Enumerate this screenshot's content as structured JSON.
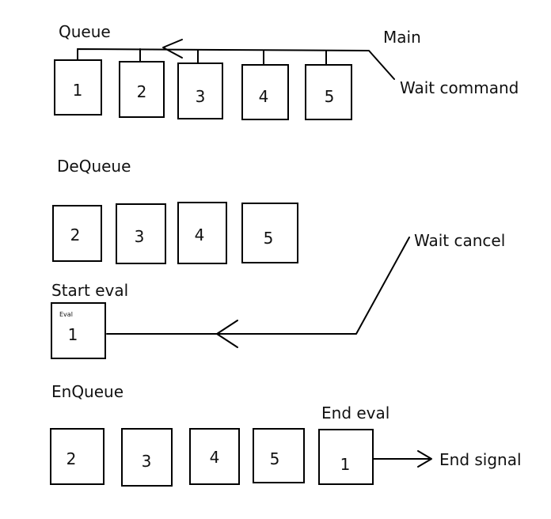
{
  "queue": {
    "title": "Queue",
    "items": [
      "1",
      "2",
      "3",
      "4",
      "5"
    ],
    "main_label": "Main",
    "wait_command_label": "Wait command"
  },
  "dequeue": {
    "title": "DeQueue",
    "items": [
      "2",
      "3",
      "4",
      "5"
    ],
    "wait_cancel_label": "Wait cancel"
  },
  "start_eval": {
    "title": "Start eval",
    "eval_tag": "Eval",
    "item": "1"
  },
  "enqueue": {
    "title": "EnQueue",
    "items": [
      "2",
      "3",
      "4",
      "5"
    ],
    "end_eval_label": "End eval",
    "end_item": "1",
    "end_signal_label": "End signal"
  }
}
